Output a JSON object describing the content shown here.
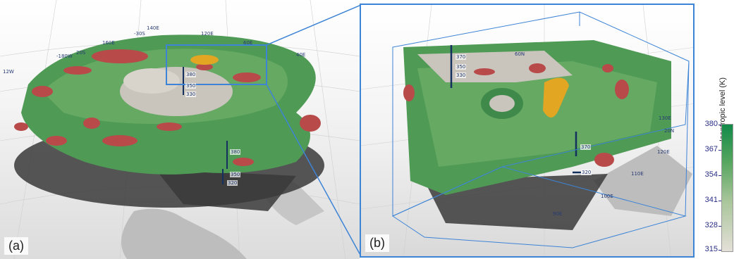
{
  "panels": {
    "a": {
      "label": "(a)",
      "map_labels": [
        "140E",
        "-30S",
        "120E",
        "160E",
        "20S",
        "-180W",
        "12W",
        "60E",
        "40E"
      ],
      "level_labels": [
        "380",
        "350",
        "330",
        "380",
        "350",
        "320"
      ]
    },
    "b": {
      "label": "(b)",
      "map_labels": [
        "60N",
        "130E",
        "20N",
        "120E",
        "110E",
        "100E",
        "90E"
      ],
      "level_labels": [
        "370",
        "350",
        "330",
        "370",
        "320"
      ]
    }
  },
  "colorbar": {
    "title": "Isentropic level (K)",
    "ticks": [
      "380",
      "367",
      "354",
      "341",
      "328",
      "315"
    ],
    "top_color": "#128a48",
    "bottom_color": "#e4e0d8"
  },
  "colors": {
    "surface_green": "#4f9a55",
    "red_blob": "#b84a4a",
    "yellow_blob": "#e2a623",
    "grey_surface": "#c9c5bc",
    "highlight_box": "#3d84d6"
  }
}
